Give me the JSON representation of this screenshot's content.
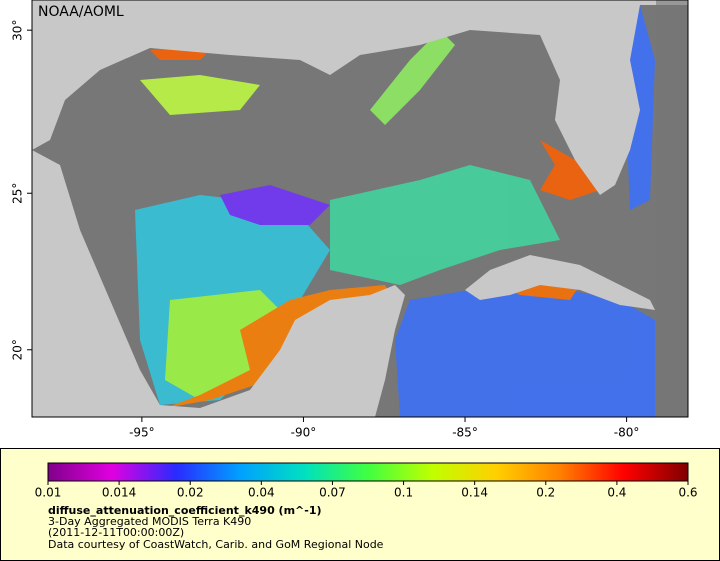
{
  "map": {
    "credit": "NOAA/AOML",
    "lon_range": [
      -98.4,
      -78.1
    ],
    "lat_range": [
      17.8,
      30.9
    ],
    "lon_ticks": [
      {
        "value": -95,
        "label": "-95°"
      },
      {
        "value": -90,
        "label": "-90°"
      },
      {
        "value": -85,
        "label": "-85°"
      },
      {
        "value": -80,
        "label": "-80°"
      }
    ],
    "lat_ticks": [
      {
        "value": 20,
        "label": "20°"
      },
      {
        "value": 25,
        "label": "25°"
      },
      {
        "value": 30,
        "label": "30°"
      }
    ]
  },
  "legend": {
    "variable": "diffuse_attenuation_coefficient_k490 (m^-1)",
    "lines": [
      "3-Day Aggregated MODIS Terra K490",
      "(2011-12-11T00:00:00Z)",
      "Data courtesy of CoastWatch, Carib. and GoM Regional Node"
    ],
    "colorbar": {
      "scale": "log",
      "labels": [
        0.01,
        0.014,
        0.02,
        0.04,
        0.07,
        0.1,
        0.14,
        0.2,
        0.4,
        0.6
      ],
      "colors": [
        "#80008a",
        "#e000e0",
        "#2a2aff",
        "#00a0ff",
        "#00e0c0",
        "#40ff40",
        "#c0ff00",
        "#ffd000",
        "#ff8000",
        "#ff0000",
        "#800000"
      ]
    }
  }
}
